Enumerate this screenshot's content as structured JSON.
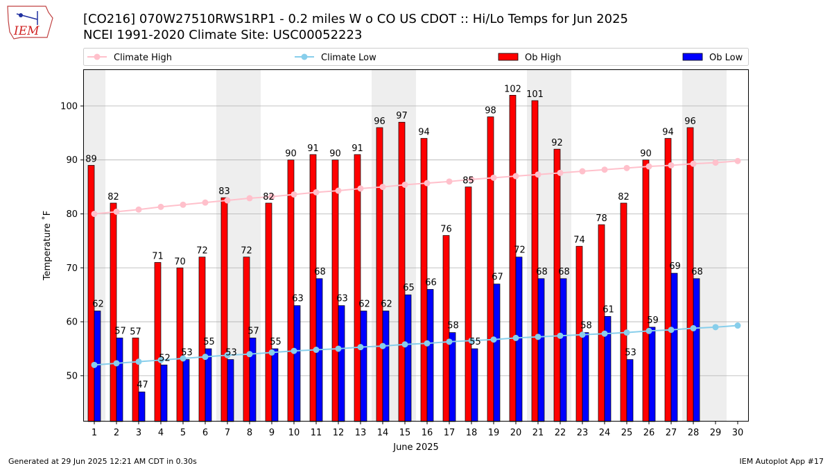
{
  "header": {
    "title_line1": "[CO216] 070W27510RWS1RP1 - 0.2 miles W o CO US CDOT :: Hi/Lo Temps for Jun 2025",
    "title_line2": "NCEI 1991-2020 Climate Site: USC00052223",
    "logo_text": "IEM"
  },
  "footer": {
    "generated": "Generated at 29 Jun 2025 12:21 AM CDT in 0.30s",
    "app": "IEM Autoplot App #17"
  },
  "colors": {
    "climate_high": "#ffc0cb",
    "climate_low": "#87ceeb",
    "ob_high": "#ff0000",
    "ob_low": "#0000ff",
    "weekend_shade": "#eeeeee",
    "grid": "#b0b0b0"
  },
  "chart_data": {
    "type": "bar",
    "xlabel": "June 2025",
    "ylabel": "Temperature ˚F",
    "ylim": [
      41.5,
      106.8
    ],
    "yticks": [
      50,
      60,
      70,
      80,
      90,
      100
    ],
    "grid": "horizontal",
    "legend": "top",
    "legend_entries": [
      "Climate High",
      "Climate Low",
      "Ob High",
      "Ob Low"
    ],
    "x": [
      1,
      2,
      3,
      4,
      5,
      6,
      7,
      8,
      9,
      10,
      11,
      12,
      13,
      14,
      15,
      16,
      17,
      18,
      19,
      20,
      21,
      22,
      23,
      24,
      25,
      26,
      27,
      28,
      29,
      30
    ],
    "weekend_days": [
      1,
      7,
      8,
      14,
      15,
      21,
      22,
      28,
      29
    ],
    "series": [
      {
        "name": "Ob High",
        "kind": "bar",
        "values": [
          89,
          82,
          57,
          71,
          70,
          72,
          83,
          72,
          82,
          90,
          91,
          90,
          91,
          96,
          97,
          94,
          76,
          85,
          98,
          102,
          101,
          92,
          74,
          78,
          82,
          90,
          94,
          96,
          null,
          null
        ]
      },
      {
        "name": "Ob Low",
        "kind": "bar",
        "values": [
          62,
          57,
          47,
          52,
          53,
          55,
          53,
          57,
          55,
          63,
          68,
          63,
          62,
          62,
          65,
          66,
          58,
          55,
          67,
          72,
          68,
          68,
          58,
          61,
          53,
          59,
          69,
          68,
          null,
          null
        ]
      },
      {
        "name": "Climate High",
        "kind": "line",
        "values": [
          80.0,
          80.4,
          80.8,
          81.3,
          81.7,
          82.1,
          82.5,
          82.9,
          83.2,
          83.6,
          84.0,
          84.3,
          84.7,
          85.0,
          85.4,
          85.7,
          86.0,
          86.4,
          86.7,
          87.0,
          87.3,
          87.6,
          87.9,
          88.2,
          88.5,
          88.8,
          89.0,
          89.3,
          89.5,
          89.8
        ]
      },
      {
        "name": "Climate Low",
        "kind": "line",
        "values": [
          52.0,
          52.3,
          52.6,
          52.9,
          53.2,
          53.5,
          53.8,
          54.0,
          54.3,
          54.6,
          54.8,
          55.0,
          55.3,
          55.5,
          55.8,
          56.0,
          56.3,
          56.5,
          56.7,
          57.0,
          57.2,
          57.4,
          57.6,
          57.8,
          58.0,
          58.3,
          58.5,
          58.8,
          59.0,
          59.3
        ]
      }
    ]
  }
}
